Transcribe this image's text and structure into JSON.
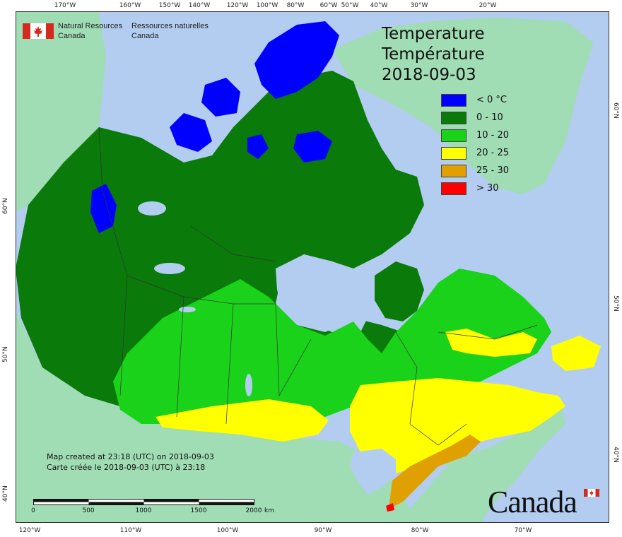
{
  "header": {
    "agency_en_line1": "Natural Resources",
    "agency_en_line2": "Canada",
    "agency_fr_line1": "Ressources naturelles",
    "agency_fr_line2": "Canada"
  },
  "title": {
    "en": "Temperature",
    "fr": "Température",
    "date": "2018-09-03"
  },
  "legend": [
    {
      "label": "< 0 °C",
      "color": "#0000ff"
    },
    {
      "label": "0 - 10",
      "color": "#0a7a0a"
    },
    {
      "label": "10 - 20",
      "color": "#1ad21a"
    },
    {
      "label": "20 - 25",
      "color": "#ffff00"
    },
    {
      "label": "25 - 30",
      "color": "#e0a000"
    },
    {
      "label": "> 30",
      "color": "#ff0000"
    }
  ],
  "credit": {
    "en": "Map created at 23:18 (UTC) on 2018-09-03",
    "fr": "Carte créée le 2018-09-03 (UTC) à 23:18"
  },
  "scale": {
    "labels": [
      "0",
      "500",
      "1000",
      "1500",
      "2000"
    ],
    "unit": "km"
  },
  "graticule": {
    "top": [
      "170°W",
      "160°W",
      "150°W",
      "140°W",
      "120°W",
      "100°W",
      "80°W",
      "60°W",
      "50°W",
      "40°W",
      "30°W",
      "20°W"
    ],
    "bottom": [
      "120°W",
      "110°W",
      "100°W",
      "90°W",
      "80°W",
      "70°W"
    ],
    "left": [
      "60°N",
      "50°N",
      "40°N"
    ],
    "right": [
      "60°N",
      "50°N",
      "40°N"
    ]
  },
  "wordmark": "Canada",
  "colors": {
    "ocean": "#b3cdf0",
    "foreign_land": "#a0dcb4",
    "border": "#333333"
  }
}
